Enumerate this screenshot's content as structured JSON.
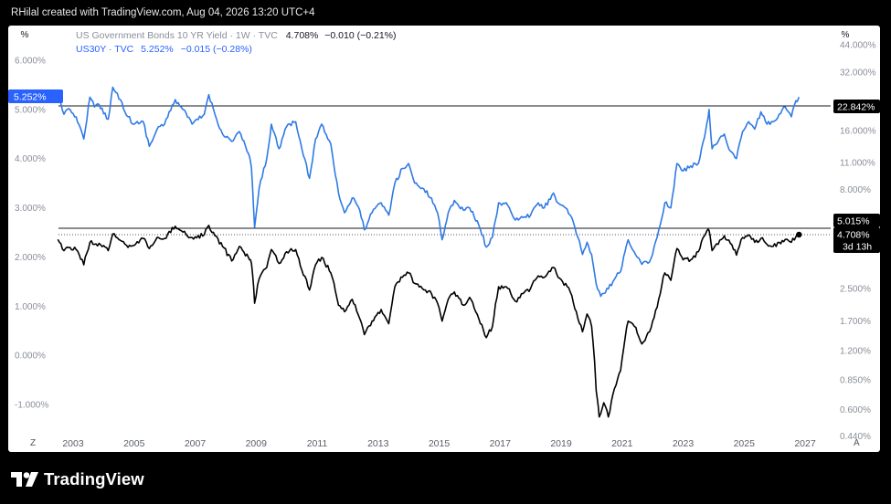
{
  "header": {
    "text": "RHilal created with TradingView.com, Aug 04, 2026 13:20 UTC+4"
  },
  "branding": {
    "logo_text": "TradingView"
  },
  "legend": {
    "series1_title": "US Government Bonds 10 YR Yield · 1W · TVC",
    "series1_value": "4.708%",
    "series1_change": "−0.010 (−0.21%)",
    "series2_title": "US30Y · TVC",
    "series2_value": "5.252%",
    "series2_change": "−0.015 (−0.28%)"
  },
  "scales": {
    "left_unit": "%",
    "right_unit": "%",
    "left_ticks": [
      "6.000%",
      "5.000%",
      "4.000%",
      "3.000%",
      "2.000%",
      "1.000%",
      "0.000%",
      "-1.000%"
    ],
    "left_tick_values": [
      6,
      5,
      4,
      3,
      2,
      1,
      0,
      -1
    ],
    "right_ticks": [
      "44.000%",
      "32.000%",
      "22.842%",
      "16.000%",
      "11.000%",
      "8.000%",
      "5.015%",
      "4.708%",
      "3d 13h",
      "2.500%",
      "1.700%",
      "1.200%",
      "0.850%",
      "0.600%",
      "0.440%"
    ],
    "left_label_current": "5.252%",
    "bottom_left_button": "Z",
    "bottom_right_button": "A"
  },
  "x_axis": {
    "labels": [
      "2003",
      "2005",
      "2007",
      "2009",
      "2011",
      "2013",
      "2015",
      "2017",
      "2019",
      "2021",
      "2023",
      "2025",
      "2027"
    ]
  },
  "colors": {
    "series1": "#000000",
    "series2": "#2f7ae5",
    "label_blue": "#2962ff",
    "label_dark": "#000000"
  },
  "chart_data": {
    "type": "line",
    "x_range": [
      2002.5,
      2027.4
    ],
    "left_y_range": [
      -1.5,
      6.4
    ],
    "left_y_scale": "linear (US30Y)",
    "right_y_scale": "log (10Y)",
    "series": [
      {
        "name": "US30Y · TVC",
        "axis": "left",
        "last_value": 5.252,
        "points": [
          [
            2002.5,
            5.4
          ],
          [
            2002.7,
            4.9
          ],
          [
            2002.9,
            5.0
          ],
          [
            2003.1,
            4.85
          ],
          [
            2003.35,
            4.4
          ],
          [
            2003.55,
            5.25
          ],
          [
            2003.7,
            5.05
          ],
          [
            2003.85,
            5.1
          ],
          [
            2004.15,
            4.8
          ],
          [
            2004.3,
            5.45
          ],
          [
            2004.55,
            5.2
          ],
          [
            2004.8,
            4.85
          ],
          [
            2005.0,
            4.7
          ],
          [
            2005.3,
            4.75
          ],
          [
            2005.5,
            4.25
          ],
          [
            2005.8,
            4.65
          ],
          [
            2006.0,
            4.7
          ],
          [
            2006.35,
            5.2
          ],
          [
            2006.6,
            5.0
          ],
          [
            2006.9,
            4.7
          ],
          [
            2007.3,
            4.9
          ],
          [
            2007.45,
            5.3
          ],
          [
            2007.65,
            4.9
          ],
          [
            2007.9,
            4.5
          ],
          [
            2008.2,
            4.35
          ],
          [
            2008.45,
            4.55
          ],
          [
            2008.75,
            4.1
          ],
          [
            2008.85,
            3.8
          ],
          [
            2008.95,
            2.6
          ],
          [
            2009.1,
            3.4
          ],
          [
            2009.35,
            4.0
          ],
          [
            2009.5,
            4.7
          ],
          [
            2009.75,
            4.2
          ],
          [
            2010.0,
            4.65
          ],
          [
            2010.3,
            4.75
          ],
          [
            2010.5,
            4.2
          ],
          [
            2010.75,
            3.6
          ],
          [
            2010.95,
            4.4
          ],
          [
            2011.15,
            4.7
          ],
          [
            2011.45,
            4.3
          ],
          [
            2011.7,
            3.3
          ],
          [
            2011.9,
            2.9
          ],
          [
            2012.15,
            3.2
          ],
          [
            2012.4,
            2.95
          ],
          [
            2012.55,
            2.55
          ],
          [
            2012.8,
            2.9
          ],
          [
            2013.1,
            3.1
          ],
          [
            2013.35,
            2.85
          ],
          [
            2013.55,
            3.5
          ],
          [
            2013.8,
            3.8
          ],
          [
            2014.0,
            3.9
          ],
          [
            2014.2,
            3.5
          ],
          [
            2014.45,
            3.4
          ],
          [
            2014.75,
            3.2
          ],
          [
            2014.95,
            2.9
          ],
          [
            2015.1,
            2.35
          ],
          [
            2015.3,
            2.9
          ],
          [
            2015.5,
            3.15
          ],
          [
            2015.8,
            2.95
          ],
          [
            2016.0,
            3.0
          ],
          [
            2016.3,
            2.65
          ],
          [
            2016.55,
            2.2
          ],
          [
            2016.75,
            2.4
          ],
          [
            2016.95,
            3.1
          ],
          [
            2017.25,
            3.05
          ],
          [
            2017.5,
            2.75
          ],
          [
            2017.75,
            2.8
          ],
          [
            2018.0,
            2.85
          ],
          [
            2018.25,
            3.1
          ],
          [
            2018.45,
            3.0
          ],
          [
            2018.75,
            3.3
          ],
          [
            2018.9,
            3.1
          ],
          [
            2019.05,
            3.05
          ],
          [
            2019.3,
            2.85
          ],
          [
            2019.55,
            2.4
          ],
          [
            2019.7,
            2.05
          ],
          [
            2019.85,
            2.3
          ],
          [
            2020.0,
            2.05
          ],
          [
            2020.15,
            1.45
          ],
          [
            2020.3,
            1.2
          ],
          [
            2020.55,
            1.35
          ],
          [
            2020.8,
            1.6
          ],
          [
            2020.95,
            1.7
          ],
          [
            2021.2,
            2.35
          ],
          [
            2021.4,
            2.1
          ],
          [
            2021.65,
            1.85
          ],
          [
            2021.9,
            1.9
          ],
          [
            2022.15,
            2.4
          ],
          [
            2022.4,
            3.1
          ],
          [
            2022.6,
            3.0
          ],
          [
            2022.8,
            3.9
          ],
          [
            2023.0,
            3.75
          ],
          [
            2023.25,
            3.85
          ],
          [
            2023.5,
            3.9
          ],
          [
            2023.75,
            4.6
          ],
          [
            2023.85,
            5.0
          ],
          [
            2023.95,
            4.2
          ],
          [
            2024.15,
            4.35
          ],
          [
            2024.35,
            4.5
          ],
          [
            2024.55,
            4.15
          ],
          [
            2024.75,
            4.0
          ],
          [
            2024.95,
            4.55
          ],
          [
            2025.15,
            4.75
          ],
          [
            2025.35,
            4.6
          ],
          [
            2025.55,
            4.95
          ],
          [
            2025.75,
            4.7
          ],
          [
            2025.95,
            4.75
          ],
          [
            2026.15,
            4.9
          ],
          [
            2026.35,
            5.05
          ],
          [
            2026.55,
            4.85
          ],
          [
            2026.7,
            5.18
          ],
          [
            2026.8,
            5.252
          ]
        ]
      },
      {
        "name": "US Government Bonds 10 YR Yield · 1W · TVC",
        "axis": "right",
        "last_value": 4.708,
        "points": [
          [
            2002.5,
            4.45
          ],
          [
            2002.7,
            3.9
          ],
          [
            2002.9,
            4.05
          ],
          [
            2003.1,
            3.95
          ],
          [
            2003.35,
            3.3
          ],
          [
            2003.55,
            4.3
          ],
          [
            2003.7,
            4.2
          ],
          [
            2003.85,
            4.25
          ],
          [
            2004.15,
            3.9
          ],
          [
            2004.3,
            4.75
          ],
          [
            2004.55,
            4.4
          ],
          [
            2004.8,
            4.05
          ],
          [
            2005.0,
            4.15
          ],
          [
            2005.3,
            4.5
          ],
          [
            2005.5,
            4.0
          ],
          [
            2005.8,
            4.55
          ],
          [
            2006.0,
            4.5
          ],
          [
            2006.35,
            5.2
          ],
          [
            2006.6,
            4.85
          ],
          [
            2006.9,
            4.55
          ],
          [
            2007.3,
            4.7
          ],
          [
            2007.45,
            5.25
          ],
          [
            2007.65,
            4.65
          ],
          [
            2007.9,
            4.1
          ],
          [
            2008.2,
            3.45
          ],
          [
            2008.45,
            4.1
          ],
          [
            2008.75,
            3.6
          ],
          [
            2008.85,
            3.35
          ],
          [
            2008.95,
            2.1
          ],
          [
            2009.1,
            2.8
          ],
          [
            2009.35,
            3.2
          ],
          [
            2009.5,
            3.95
          ],
          [
            2009.75,
            3.35
          ],
          [
            2010.0,
            3.85
          ],
          [
            2010.3,
            3.95
          ],
          [
            2010.5,
            3.1
          ],
          [
            2010.75,
            2.45
          ],
          [
            2010.95,
            3.3
          ],
          [
            2011.15,
            3.6
          ],
          [
            2011.45,
            3.0
          ],
          [
            2011.7,
            2.05
          ],
          [
            2011.9,
            1.9
          ],
          [
            2012.15,
            2.2
          ],
          [
            2012.4,
            1.75
          ],
          [
            2012.55,
            1.45
          ],
          [
            2012.8,
            1.7
          ],
          [
            2013.1,
            1.95
          ],
          [
            2013.35,
            1.65
          ],
          [
            2013.55,
            2.55
          ],
          [
            2013.8,
            2.85
          ],
          [
            2014.0,
            3.0
          ],
          [
            2014.2,
            2.65
          ],
          [
            2014.45,
            2.5
          ],
          [
            2014.75,
            2.35
          ],
          [
            2014.95,
            2.1
          ],
          [
            2015.1,
            1.7
          ],
          [
            2015.3,
            2.2
          ],
          [
            2015.5,
            2.4
          ],
          [
            2015.8,
            2.05
          ],
          [
            2016.0,
            2.25
          ],
          [
            2016.3,
            1.75
          ],
          [
            2016.55,
            1.4
          ],
          [
            2016.75,
            1.6
          ],
          [
            2016.95,
            2.55
          ],
          [
            2017.25,
            2.5
          ],
          [
            2017.5,
            2.15
          ],
          [
            2017.75,
            2.35
          ],
          [
            2018.0,
            2.5
          ],
          [
            2018.25,
            2.9
          ],
          [
            2018.45,
            2.85
          ],
          [
            2018.75,
            3.2
          ],
          [
            2018.9,
            2.85
          ],
          [
            2019.05,
            2.7
          ],
          [
            2019.3,
            2.4
          ],
          [
            2019.55,
            1.75
          ],
          [
            2019.7,
            1.5
          ],
          [
            2019.85,
            1.85
          ],
          [
            2020.0,
            1.6
          ],
          [
            2020.15,
            0.75
          ],
          [
            2020.25,
            0.55
          ],
          [
            2020.4,
            0.65
          ],
          [
            2020.55,
            0.55
          ],
          [
            2020.8,
            0.8
          ],
          [
            2020.95,
            0.95
          ],
          [
            2021.2,
            1.7
          ],
          [
            2021.4,
            1.6
          ],
          [
            2021.65,
            1.3
          ],
          [
            2021.9,
            1.5
          ],
          [
            2022.15,
            2.0
          ],
          [
            2022.4,
            3.0
          ],
          [
            2022.6,
            2.75
          ],
          [
            2022.8,
            4.0
          ],
          [
            2023.0,
            3.5
          ],
          [
            2023.25,
            3.5
          ],
          [
            2023.5,
            3.85
          ],
          [
            2023.75,
            4.8
          ],
          [
            2023.85,
            4.95
          ],
          [
            2023.95,
            3.9
          ],
          [
            2024.15,
            4.2
          ],
          [
            2024.35,
            4.65
          ],
          [
            2024.55,
            4.25
          ],
          [
            2024.75,
            3.7
          ],
          [
            2024.95,
            4.55
          ],
          [
            2025.15,
            4.7
          ],
          [
            2025.35,
            4.3
          ],
          [
            2025.55,
            4.5
          ],
          [
            2025.75,
            4.2
          ],
          [
            2025.95,
            4.1
          ],
          [
            2026.15,
            4.3
          ],
          [
            2026.35,
            4.45
          ],
          [
            2026.55,
            4.3
          ],
          [
            2026.7,
            4.6
          ],
          [
            2026.8,
            4.708
          ]
        ]
      }
    ]
  }
}
